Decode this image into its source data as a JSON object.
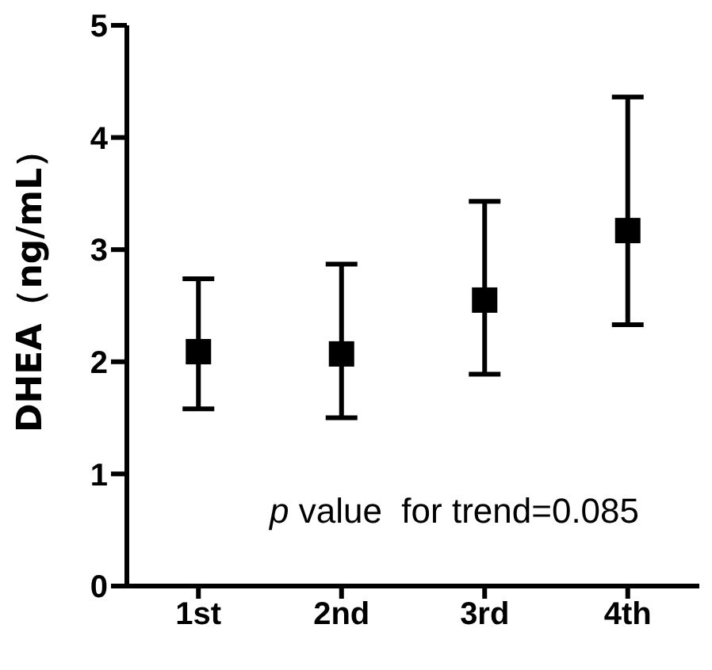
{
  "chart_data": {
    "type": "scatter",
    "ylabel": "DHEA（ng/mL）",
    "categories": [
      "1st",
      "2nd",
      "3rd",
      "4th"
    ],
    "series": [
      {
        "color": "#000000",
        "values": [
          2.09,
          2.07,
          2.55,
          3.17
        ],
        "errors": [
          [
            1.58,
            2.74
          ],
          [
            1.5,
            2.87
          ],
          [
            1.89,
            3.43
          ],
          [
            2.33,
            4.36
          ]
        ]
      }
    ],
    "ylim": [
      0,
      5
    ],
    "yticks": [
      0,
      1,
      2,
      3,
      4,
      5
    ],
    "marker": "square",
    "grid": false,
    "annotations": [
      "p value  for trend=0.085"
    ]
  }
}
